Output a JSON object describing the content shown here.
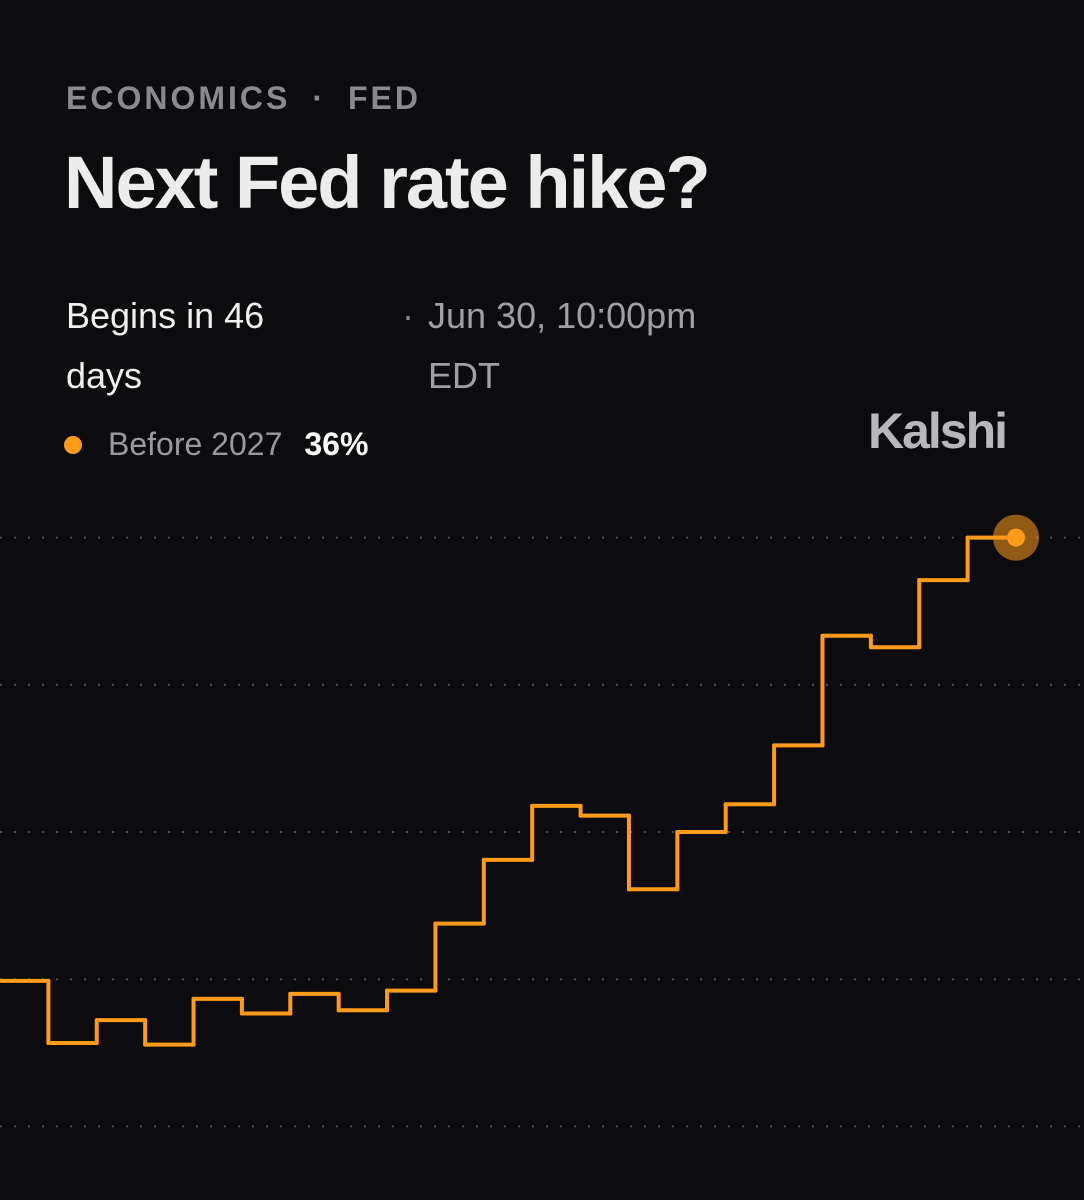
{
  "chart_data": {
    "type": "step",
    "category": "ECONOMICS",
    "subcategory": "FED",
    "title": "Next Fed rate hike?",
    "begins": "Begins in 46 days",
    "date": "Jun 30, 10:00pm EDT",
    "brand": "Kalshi",
    "categories": [
      null,
      null,
      null,
      null,
      null,
      null,
      null,
      null,
      null,
      null,
      null,
      null,
      null,
      null,
      null,
      null,
      null,
      null,
      null,
      null,
      null
    ],
    "series": [
      {
        "name": "Before 2027",
        "color": "#ff9a1a",
        "values": [
          8.9,
          5.1,
          6.5,
          5.0,
          7.8,
          6.9,
          8.1,
          7.1,
          8.3,
          12.4,
          16.3,
          19.6,
          19.0,
          14.5,
          18.0,
          19.7,
          23.3,
          30.0,
          29.3,
          33.4,
          36
        ],
        "current_label": "36%"
      }
    ],
    "ylim": [
      -4.5,
      38.3
    ],
    "yticks": [
      0,
      9,
      18,
      27,
      36
    ],
    "grid": true
  }
}
